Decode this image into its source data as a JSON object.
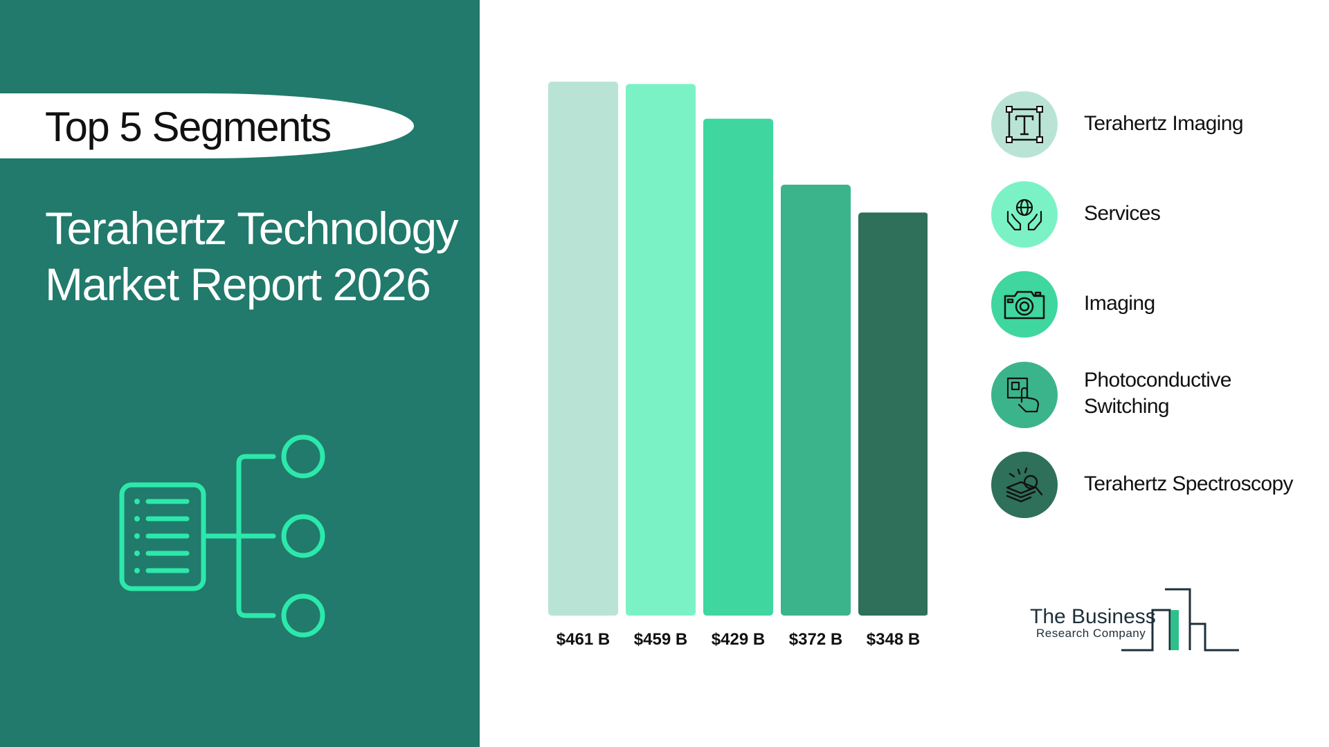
{
  "banner": {
    "label": "Top 5 Segments"
  },
  "report": {
    "line1": "Terahertz Technology",
    "line2": "Market Report 2026"
  },
  "chart_data": {
    "type": "bar",
    "categories": [
      "Terahertz Imaging",
      "Services",
      "Imaging",
      "Photoconductive Switching",
      "Terahertz Spectroscopy"
    ],
    "values": [
      461,
      459,
      429,
      372,
      348
    ],
    "value_labels": [
      "$461 B",
      "$459 B",
      "$429 B",
      "$372 B",
      "$348 B"
    ],
    "colors": [
      "#b9e4d5",
      "#7bf2c6",
      "#3fd69f",
      "#3cb48b",
      "#2e705a"
    ],
    "ylim": [
      0,
      461
    ],
    "grid": false,
    "legend_position": "right"
  },
  "legend": [
    {
      "label": "Terahertz Imaging",
      "icon": "text-frame-icon",
      "color": "#b9e4d5"
    },
    {
      "label": "Services",
      "icon": "hands-globe-icon",
      "color": "#7bf2c6"
    },
    {
      "label": "Imaging",
      "icon": "camera-icon",
      "color": "#3fd69f"
    },
    {
      "label": "Photoconductive Switching",
      "icon": "touch-screen-icon",
      "color": "#3cb48b"
    },
    {
      "label": "Terahertz Spectroscopy",
      "icon": "magnifier-layers-icon",
      "color": "#2e705a"
    }
  ],
  "logo": {
    "line1": "The Business",
    "line2": "Research Company"
  }
}
